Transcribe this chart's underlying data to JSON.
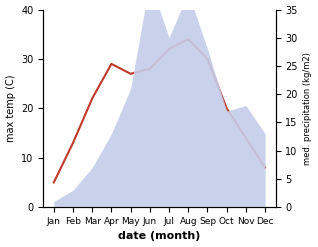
{
  "months": [
    "Jan",
    "Feb",
    "Mar",
    "Apr",
    "May",
    "Jun",
    "Jul",
    "Aug",
    "Sep",
    "Oct",
    "Nov",
    "Dec"
  ],
  "temp": [
    5,
    13,
    22,
    29,
    27,
    28,
    32,
    34,
    30,
    20,
    14,
    8
  ],
  "precip": [
    1,
    3,
    7,
    13,
    21,
    40,
    30,
    38,
    28,
    17,
    18,
    13
  ],
  "temp_color": "#c0392b",
  "precip_color_fill": "#c5cce8",
  "temp_ylim": [
    0,
    40
  ],
  "temp_yticks": [
    0,
    10,
    20,
    30,
    40
  ],
  "precip_ylim": [
    0,
    35
  ],
  "precip_yticks": [
    0,
    5,
    10,
    15,
    20,
    25,
    30,
    35
  ],
  "xlabel": "date (month)",
  "ylabel_left": "max temp (C)",
  "ylabel_right": "med. precipitation (kg/m2)"
}
